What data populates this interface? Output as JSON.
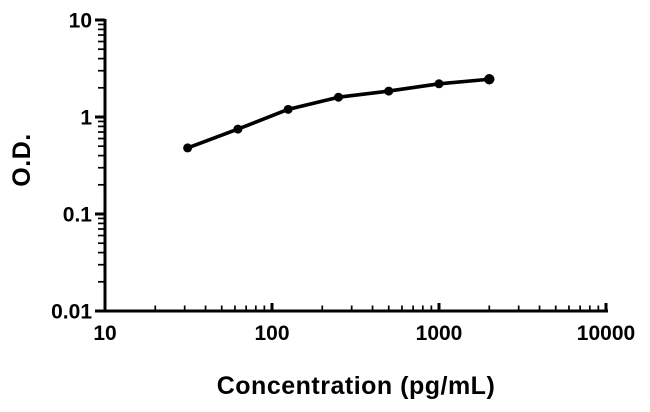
{
  "figure": {
    "background_color": "#ffffff",
    "ink_color": "#000000"
  },
  "chart_data": {
    "type": "line",
    "title": "",
    "xlabel": "Concentration (pg/mL)",
    "ylabel": "O.D.",
    "x_scale": "log",
    "y_scale": "log",
    "xlim": [
      10,
      10000
    ],
    "ylim": [
      0.01,
      10
    ],
    "grid": false,
    "legend": "none",
    "marker": "filled-circle",
    "line_color": "#000000",
    "marker_color": "#000000",
    "x_ticks": [
      10,
      100,
      1000,
      10000
    ],
    "x_tick_labels": [
      "10",
      "100",
      "1000",
      "10000"
    ],
    "y_ticks": [
      10,
      1,
      0.1,
      0.01
    ],
    "y_tick_labels": [
      "10",
      "1",
      "0.1",
      "0.01"
    ],
    "x": [
      31.25,
      62.5,
      125,
      250,
      500,
      1000,
      2000
    ],
    "y": [
      0.48,
      0.75,
      1.2,
      1.6,
      1.85,
      2.2,
      2.45
    ]
  }
}
